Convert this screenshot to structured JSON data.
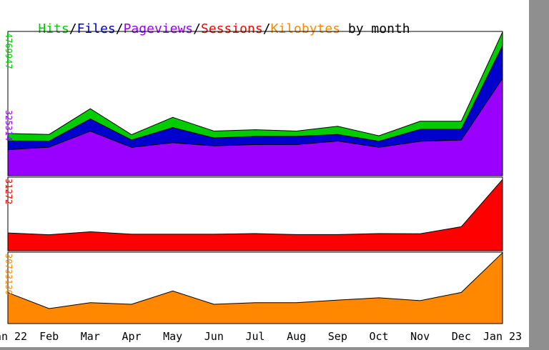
{
  "title": {
    "parts": [
      {
        "text": "Hits",
        "color": "#00cc00"
      },
      {
        "text": "/",
        "color": "#000000"
      },
      {
        "text": "Files",
        "color": "#0000cc"
      },
      {
        "text": "/",
        "color": "#000000"
      },
      {
        "text": "Pageviews",
        "color": "#9900ff"
      },
      {
        "text": "/",
        "color": "#000000"
      },
      {
        "text": "Sessions",
        "color": "#ff0000"
      },
      {
        "text": "/",
        "color": "#000000"
      },
      {
        "text": "Kilobytes",
        "color": "#ff8800"
      },
      {
        "text": " by month",
        "color": "#000000"
      }
    ]
  },
  "chart_data": {
    "type": "area",
    "categories": [
      "Jan 22",
      "Feb",
      "Mar",
      "Apr",
      "May",
      "Jun",
      "Jul",
      "Aug",
      "Sep",
      "Oct",
      "Nov",
      "Dec",
      "Jan 23"
    ],
    "panels": [
      {
        "max_label": "4769947",
        "max_label_color": "#00cc00",
        "mid_label": "325314",
        "mid_label_color": "#9900ff",
        "ymax": 4769947,
        "series": [
          {
            "name": "Hits",
            "color": "#00cc00",
            "values": [
              1395000,
              1365000,
              2215000,
              1355000,
              1930000,
              1475000,
              1520000,
              1475000,
              1635000,
              1320000,
              1800000,
              1800000,
              4750000
            ]
          },
          {
            "name": "Files",
            "color": "#0000cc",
            "values": [
              1150000,
              1145000,
              1880000,
              1180000,
              1595000,
              1250000,
              1300000,
              1300000,
              1365000,
              1140000,
              1535000,
              1535000,
              4300000
            ]
          },
          {
            "name": "Pageviews",
            "color": "#9900ff",
            "values": [
              860000,
              945000,
              1470000,
              935000,
              1090000,
              985000,
              1030000,
              1030000,
              1145000,
              940000,
              1135000,
              1180000,
              3220000
            ]
          }
        ]
      },
      {
        "max_label": "31272",
        "max_label_color": "#ff0000",
        "ymax": 31272,
        "series": [
          {
            "name": "Sessions",
            "color": "#ff0000",
            "values": [
              7550,
              6800,
              8050,
              7000,
              7000,
              7000,
              7300,
              6850,
              6850,
              7300,
              7200,
              10200,
              30300
            ]
          }
        ]
      },
      {
        "max_label": "30733130",
        "max_label_color": "#ff8800",
        "ymax": 30733130,
        "series": [
          {
            "name": "Kilobytes",
            "color": "#ff8800",
            "values": [
              13300000,
              6450000,
              9000000,
              8300000,
              14000000,
              8300000,
              9000000,
              9000000,
              10100000,
              11100000,
              9850000,
              13400000,
              30500000
            ]
          }
        ]
      }
    ]
  }
}
